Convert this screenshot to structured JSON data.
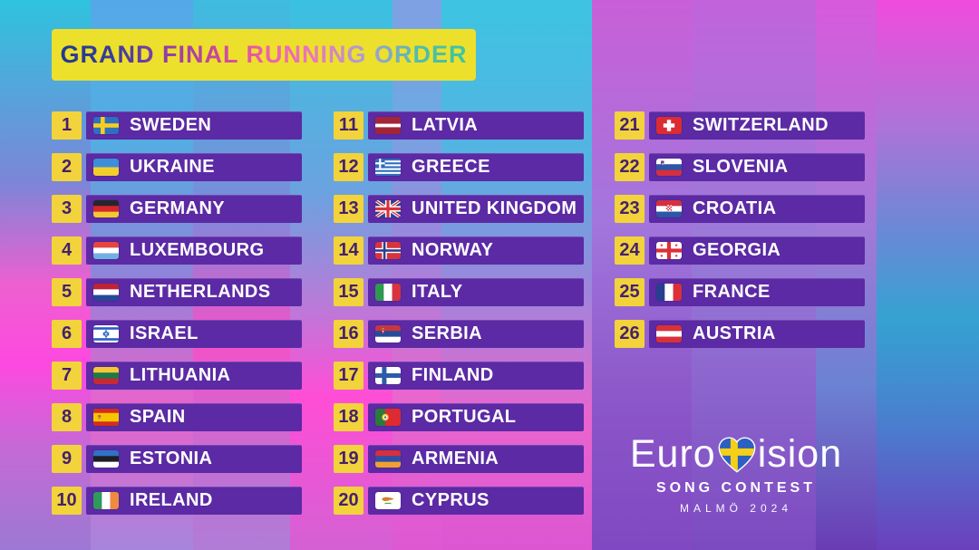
{
  "header": {
    "title": "GRAND FINAL RUNNING ORDER"
  },
  "entries": [
    {
      "number": "1",
      "country": "SWEDEN",
      "flag": "sweden"
    },
    {
      "number": "2",
      "country": "UKRAINE",
      "flag": "ukraine"
    },
    {
      "number": "3",
      "country": "GERMANY",
      "flag": "germany"
    },
    {
      "number": "4",
      "country": "LUXEMBOURG",
      "flag": "luxembourg"
    },
    {
      "number": "5",
      "country": "NETHERLANDS",
      "flag": "netherlands"
    },
    {
      "number": "6",
      "country": "ISRAEL",
      "flag": "israel"
    },
    {
      "number": "7",
      "country": "LITHUANIA",
      "flag": "lithuania"
    },
    {
      "number": "8",
      "country": "SPAIN",
      "flag": "spain"
    },
    {
      "number": "9",
      "country": "ESTONIA",
      "flag": "estonia"
    },
    {
      "number": "10",
      "country": "IRELAND",
      "flag": "ireland"
    },
    {
      "number": "11",
      "country": "LATVIA",
      "flag": "latvia"
    },
    {
      "number": "12",
      "country": "GREECE",
      "flag": "greece"
    },
    {
      "number": "13",
      "country": "UNITED KINGDOM",
      "flag": "uk"
    },
    {
      "number": "14",
      "country": "NORWAY",
      "flag": "norway"
    },
    {
      "number": "15",
      "country": "ITALY",
      "flag": "italy"
    },
    {
      "number": "16",
      "country": "SERBIA",
      "flag": "serbia"
    },
    {
      "number": "17",
      "country": "FINLAND",
      "flag": "finland"
    },
    {
      "number": "18",
      "country": "PORTUGAL",
      "flag": "portugal"
    },
    {
      "number": "19",
      "country": "ARMENIA",
      "flag": "armenia"
    },
    {
      "number": "20",
      "country": "CYPRUS",
      "flag": "cyprus"
    },
    {
      "number": "21",
      "country": "SWITZERLAND",
      "flag": "switzerland"
    },
    {
      "number": "22",
      "country": "SLOVENIA",
      "flag": "slovenia"
    },
    {
      "number": "23",
      "country": "CROATIA",
      "flag": "croatia"
    },
    {
      "number": "24",
      "country": "GEORGIA",
      "flag": "georgia"
    },
    {
      "number": "25",
      "country": "FRANCE",
      "flag": "france"
    },
    {
      "number": "26",
      "country": "AUSTRIA",
      "flag": "austria"
    }
  ],
  "logo": {
    "brand_pre": "Euro",
    "brand_post": "ision",
    "heart_icon": "sweden-flag-heart-icon",
    "subtitle": "SONG CONTEST",
    "event": "MALMÖ 2024"
  },
  "colors": {
    "banner_yellow": "#EDE02C",
    "tile_yellow": "#F2D33B",
    "bar_purple": "#5B2AA4",
    "number_purple": "#45216D",
    "text_white": "#FFFFFF",
    "title_gradient": [
      "#1F3A8E",
      "#3A3D9A",
      "#8C3EA8",
      "#C8469E",
      "#EE5FA8",
      "#E77BBC",
      "#A99FD4",
      "#52BBAE",
      "#3DC6A2"
    ]
  }
}
